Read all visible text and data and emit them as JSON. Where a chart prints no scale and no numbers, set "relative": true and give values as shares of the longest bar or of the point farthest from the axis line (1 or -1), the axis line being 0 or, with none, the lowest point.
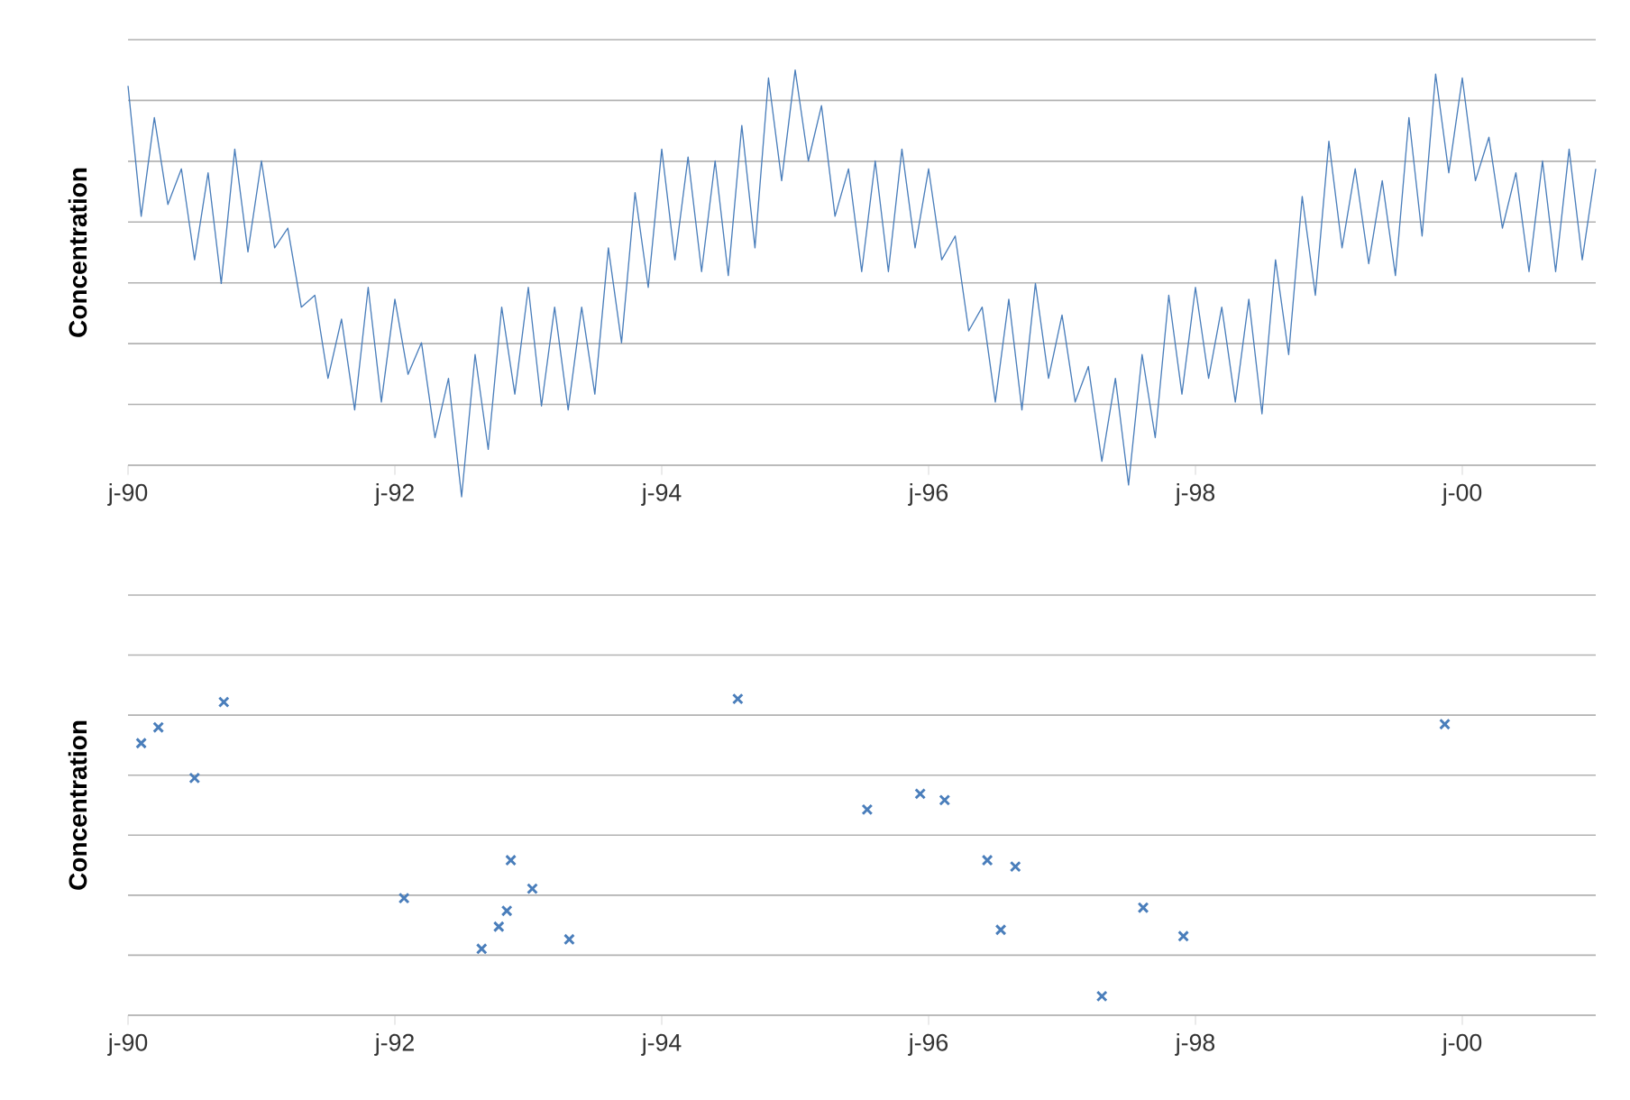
{
  "chart_data": [
    {
      "type": "line",
      "ylabel": "Concentration",
      "relative": true,
      "color": "#4a7ebb",
      "grid": "y",
      "xlim": [
        "1990-01-01",
        "2001-01-01"
      ],
      "xticks": [
        {
          "value": "1990-01-01",
          "label": "j-90"
        },
        {
          "value": "1992-01-01",
          "label": "j-92"
        },
        {
          "value": "1994-01-01",
          "label": "j-94"
        },
        {
          "value": "1996-01-01",
          "label": "j-96"
        },
        {
          "value": "1998-01-01",
          "label": "j-98"
        },
        {
          "value": "2000-01-01",
          "label": "j-00"
        }
      ],
      "x": [
        "1990-01-01",
        "1990-02-06",
        "1990-03-14",
        "1990-04-20",
        "1990-05-27",
        "1990-07-02",
        "1990-08-08",
        "1990-09-13",
        "1990-10-20",
        "1990-11-25",
        "1991-01-01",
        "1991-02-06",
        "1991-03-14",
        "1991-04-20",
        "1991-05-27",
        "1991-07-02",
        "1991-08-08",
        "1991-09-13",
        "1991-10-20",
        "1991-11-25",
        "1992-01-01",
        "1992-02-06",
        "1992-03-14",
        "1992-04-20",
        "1992-05-27",
        "1992-07-02",
        "1992-08-08",
        "1992-09-13",
        "1992-10-20",
        "1992-11-25",
        "1993-01-01",
        "1993-02-06",
        "1993-03-14",
        "1993-04-20",
        "1993-05-27",
        "1993-07-02",
        "1993-08-08",
        "1993-09-13",
        "1993-10-20",
        "1993-11-25",
        "1994-01-01",
        "1994-02-06",
        "1994-03-14",
        "1994-04-20",
        "1994-05-27",
        "1994-07-02",
        "1994-08-08",
        "1994-09-13",
        "1994-10-20",
        "1994-11-25",
        "1995-01-01",
        "1995-02-06",
        "1995-03-14",
        "1995-04-20",
        "1995-05-27",
        "1995-07-02",
        "1995-08-08",
        "1995-09-13",
        "1995-10-20",
        "1995-11-25",
        "1996-01-01",
        "1996-02-06",
        "1996-03-14",
        "1996-04-20",
        "1996-05-27",
        "1996-07-02",
        "1996-08-08",
        "1996-09-13",
        "1996-10-20",
        "1996-11-25",
        "1997-01-01",
        "1997-02-06",
        "1997-03-14",
        "1997-04-20",
        "1997-05-27",
        "1997-07-02",
        "1997-08-08",
        "1997-09-13",
        "1997-10-20",
        "1997-11-25",
        "1998-01-01",
        "1998-02-06",
        "1998-03-14",
        "1998-04-20",
        "1998-05-27",
        "1998-07-02",
        "1998-08-08",
        "1998-09-13",
        "1998-10-20",
        "1998-11-25",
        "1999-01-01",
        "1999-02-06",
        "1999-03-14",
        "1999-04-20",
        "1999-05-27",
        "1999-07-02",
        "1999-08-08",
        "1999-09-13",
        "1999-10-20",
        "1999-11-25",
        "2000-01-01",
        "2000-02-06",
        "2000-03-14",
        "2000-04-20",
        "2000-05-27",
        "2000-07-02",
        "2000-08-08",
        "2000-09-13",
        "2000-10-20",
        "2000-11-25",
        "2001-01-01"
      ],
      "values": [
        0.96,
        0.63,
        0.88,
        0.66,
        0.75,
        0.52,
        0.74,
        0.46,
        0.8,
        0.54,
        0.77,
        0.55,
        0.6,
        0.4,
        0.43,
        0.22,
        0.37,
        0.14,
        0.45,
        0.16,
        0.42,
        0.23,
        0.31,
        0.07,
        0.22,
        -0.08,
        0.28,
        0.04,
        0.4,
        0.18,
        0.45,
        0.15,
        0.4,
        0.14,
        0.4,
        0.18,
        0.55,
        0.31,
        0.69,
        0.45,
        0.8,
        0.52,
        0.78,
        0.49,
        0.77,
        0.48,
        0.86,
        0.55,
        0.98,
        0.72,
        1,
        0.77,
        0.91,
        0.63,
        0.75,
        0.49,
        0.77,
        0.49,
        0.8,
        0.55,
        0.75,
        0.52,
        0.58,
        0.34,
        0.4,
        0.16,
        0.42,
        0.14,
        0.46,
        0.22,
        0.38,
        0.16,
        0.25,
        0.01,
        0.22,
        -0.05,
        0.28,
        0.07,
        0.43,
        0.18,
        0.45,
        0.22,
        0.4,
        0.16,
        0.42,
        0.13,
        0.52,
        0.28,
        0.68,
        0.43,
        0.82,
        0.55,
        0.75,
        0.51,
        0.72,
        0.48,
        0.88,
        0.58,
        0.99,
        0.74,
        0.98,
        0.72,
        0.83,
        0.6,
        0.74,
        0.49,
        0.77,
        0.49,
        0.8,
        0.52,
        0.75
      ]
    },
    {
      "type": "scatter",
      "ylabel": "Concentration",
      "relative": true,
      "color": "#4a7ebb",
      "marker": "cross",
      "grid": "y",
      "xlim": [
        "1990-01-01",
        "2001-01-01"
      ],
      "xticks": [
        {
          "value": "1990-01-01",
          "label": "j-90"
        },
        {
          "value": "1992-01-01",
          "label": "j-92"
        },
        {
          "value": "1994-01-01",
          "label": "j-94"
        },
        {
          "value": "1996-01-01",
          "label": "j-96"
        },
        {
          "value": "1998-01-01",
          "label": "j-98"
        },
        {
          "value": "2000-01-01",
          "label": "j-00"
        }
      ],
      "x": [
        "1990-02-06",
        "1990-03-25",
        "1990-07-02",
        "1990-09-20",
        "1992-01-26",
        "1992-08-26",
        "1992-10-12",
        "1992-11-03",
        "1992-11-14",
        "1993-01-12",
        "1993-04-23",
        "1994-07-28",
        "1995-07-17",
        "1995-12-09",
        "1996-02-14",
        "1996-06-10",
        "1996-08-26",
        "1996-07-17",
        "1997-04-20",
        "1997-08-11",
        "1997-11-29",
        "1999-11-14"
      ],
      "values": [
        0.86,
        0.91,
        0.75,
        0.99,
        0.37,
        0.21,
        0.28,
        0.33,
        0.49,
        0.4,
        0.24,
        1,
        0.65,
        0.7,
        0.68,
        0.49,
        0.47,
        0.27,
        0.06,
        0.34,
        0.25,
        0.92
      ]
    }
  ]
}
